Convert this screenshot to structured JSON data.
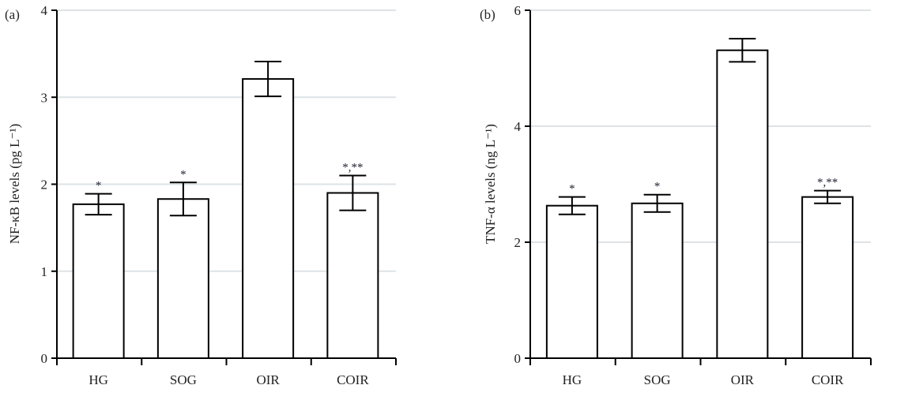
{
  "chart_data": [
    {
      "type": "bar",
      "panel_label": "(a)",
      "ylabel": "NF-κB levels (pg L⁻¹)",
      "ylim": [
        0,
        4
      ],
      "yticks": [
        0,
        1,
        2,
        3,
        4
      ],
      "grid": true,
      "categories": [
        "HG",
        "SOG",
        "OIR",
        "COIR"
      ],
      "values": [
        1.77,
        1.83,
        3.21,
        1.9
      ],
      "errors": [
        0.12,
        0.19,
        0.2,
        0.2
      ],
      "significance": [
        "*",
        "*",
        "",
        "*,**"
      ],
      "colors": {
        "bar_fill": "#ffffff",
        "bar_stroke": "#000000",
        "grid": "#dde3e6"
      }
    },
    {
      "type": "bar",
      "panel_label": "(b)",
      "ylabel": "TNF-α levels (ng L⁻¹)",
      "ylim": [
        0,
        6
      ],
      "yticks": [
        0,
        2,
        4,
        6
      ],
      "grid": true,
      "categories": [
        "HG",
        "SOG",
        "OIR",
        "COIR"
      ],
      "values": [
        2.63,
        2.67,
        5.31,
        2.78
      ],
      "errors": [
        0.15,
        0.15,
        0.2,
        0.11
      ],
      "significance": [
        "*",
        "*",
        "",
        "*,**"
      ],
      "colors": {
        "bar_fill": "#ffffff",
        "bar_stroke": "#000000",
        "grid": "#dde3e6"
      }
    }
  ]
}
